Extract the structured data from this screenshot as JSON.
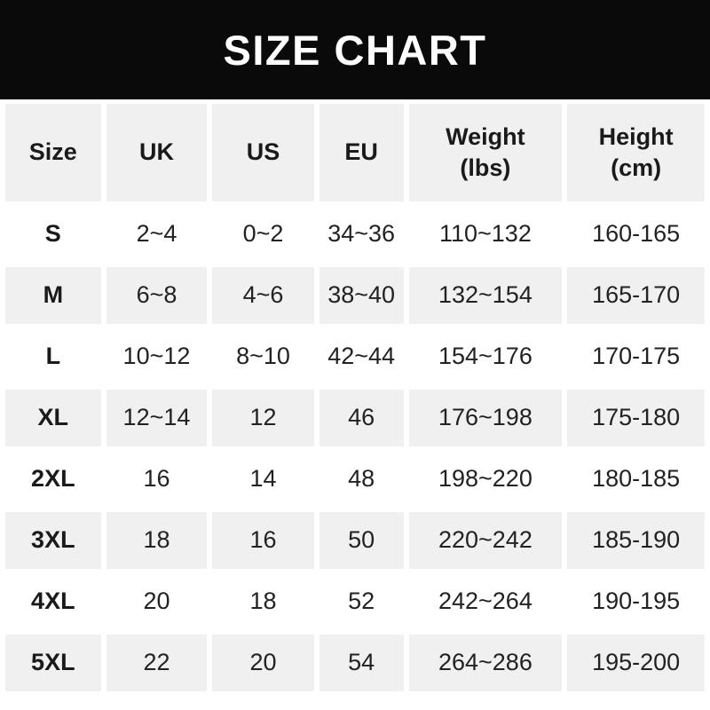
{
  "title": "SIZE CHART",
  "colors": {
    "banner_bg": "#0a0a0a",
    "banner_text": "#ffffff",
    "row_alt_bg": "#f0f0f0",
    "row_bg": "#ffffff",
    "text": "#1d1d1f"
  },
  "chart_data": {
    "type": "table",
    "title": "SIZE CHART",
    "columns": [
      {
        "key": "size",
        "label": "Size",
        "sub": ""
      },
      {
        "key": "uk",
        "label": "UK",
        "sub": ""
      },
      {
        "key": "us",
        "label": "US",
        "sub": ""
      },
      {
        "key": "eu",
        "label": "EU",
        "sub": ""
      },
      {
        "key": "weight-lbs",
        "label": "Weight",
        "sub": "(lbs)"
      },
      {
        "key": "height-cm",
        "label": "Height",
        "sub": "(cm)"
      }
    ],
    "rows": [
      [
        "S",
        "2~4",
        "0~2",
        "34~36",
        "110~132",
        "160-165"
      ],
      [
        "M",
        "6~8",
        "4~6",
        "38~40",
        "132~154",
        "165-170"
      ],
      [
        "L",
        "10~12",
        "8~10",
        "42~44",
        "154~176",
        "170-175"
      ],
      [
        "XL",
        "12~14",
        "12",
        "46",
        "176~198",
        "175-180"
      ],
      [
        "2XL",
        "16",
        "14",
        "48",
        "198~220",
        "180-185"
      ],
      [
        "3XL",
        "18",
        "16",
        "50",
        "220~242",
        "185-190"
      ],
      [
        "4XL",
        "20",
        "18",
        "52",
        "242~264",
        "190-195"
      ],
      [
        "5XL",
        "22",
        "20",
        "54",
        "264~286",
        "195-200"
      ]
    ]
  }
}
